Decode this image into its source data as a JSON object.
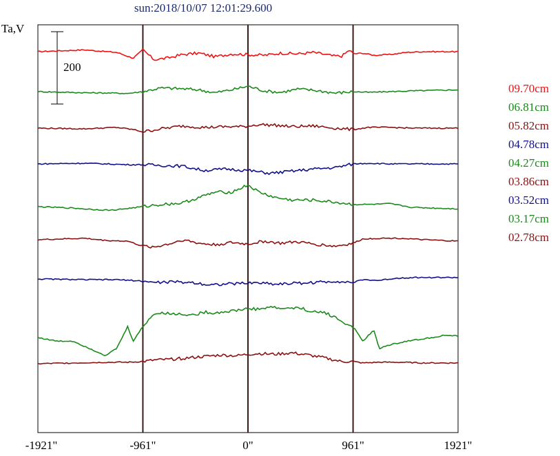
{
  "title": "sun:2018/10/07 12:01:29.600",
  "ylabel": "Ta,V",
  "scale_bar_label": "200",
  "chart_data": {
    "type": "line",
    "title": "sun:2018/10/07 12:01:29.600",
    "ylabel": "Ta,V",
    "xlim": [
      -1921,
      1921
    ],
    "x_ticks": [
      "-1921\"",
      "-961\"",
      "0\"",
      "961\"",
      "1921\""
    ],
    "x_tick_values": [
      -1921,
      -961,
      0,
      961,
      1921
    ],
    "vertical_lines": [
      -961,
      0,
      961
    ],
    "scale_bar": 200,
    "grid": false,
    "legend_placement": "right",
    "series": [
      {
        "name": "09.70cm",
        "color": "#ee1111",
        "points": [
          [
            -1921,
            0
          ],
          [
            -1500,
            5
          ],
          [
            -1200,
            -2
          ],
          [
            -1050,
            -18
          ],
          [
            -961,
            5
          ],
          [
            -860,
            -22
          ],
          [
            -740,
            -18
          ],
          [
            -600,
            -8
          ],
          [
            -450,
            -4
          ],
          [
            -300,
            -14
          ],
          [
            -150,
            -6
          ],
          [
            0,
            -8
          ],
          [
            150,
            -10
          ],
          [
            300,
            -4
          ],
          [
            450,
            -6
          ],
          [
            600,
            -2
          ],
          [
            780,
            -12
          ],
          [
            861,
            -12
          ],
          [
            930,
            5
          ],
          [
            961,
            -6
          ],
          [
            1050,
            -4
          ],
          [
            1150,
            -10
          ],
          [
            1300,
            -8
          ],
          [
            1450,
            -2
          ],
          [
            1600,
            0
          ],
          [
            1921,
            0
          ]
        ]
      },
      {
        "name": "06.81cm",
        "color": "#1a8a1a",
        "points": [
          [
            -1921,
            0
          ],
          [
            -1500,
            -3
          ],
          [
            -1250,
            -4
          ],
          [
            -1100,
            -5
          ],
          [
            -961,
            0
          ],
          [
            -800,
            10
          ],
          [
            -600,
            8
          ],
          [
            -450,
            5
          ],
          [
            -300,
            -3
          ],
          [
            -150,
            5
          ],
          [
            0,
            15
          ],
          [
            150,
            2
          ],
          [
            300,
            -2
          ],
          [
            450,
            7
          ],
          [
            600,
            4
          ],
          [
            800,
            -4
          ],
          [
            961,
            0
          ],
          [
            1100,
            -2
          ],
          [
            1300,
            0
          ],
          [
            1500,
            2
          ],
          [
            1921,
            5
          ]
        ]
      },
      {
        "name": "05.82cm",
        "color": "#8b1010",
        "points": [
          [
            -1921,
            0
          ],
          [
            -1500,
            -2
          ],
          [
            -1200,
            2
          ],
          [
            -1050,
            -4
          ],
          [
            -961,
            -10
          ],
          [
            -800,
            -2
          ],
          [
            -600,
            6
          ],
          [
            -400,
            2
          ],
          [
            -200,
            4
          ],
          [
            -50,
            4
          ],
          [
            100,
            10
          ],
          [
            250,
            8
          ],
          [
            400,
            4
          ],
          [
            600,
            6
          ],
          [
            800,
            0
          ],
          [
            961,
            -4
          ],
          [
            1100,
            2
          ],
          [
            1300,
            2
          ],
          [
            1500,
            0
          ],
          [
            1921,
            0
          ]
        ]
      },
      {
        "name": "04.78cm",
        "color": "#10108a",
        "points": [
          [
            -1921,
            0
          ],
          [
            -1500,
            2
          ],
          [
            -1300,
            0
          ],
          [
            -1100,
            -2
          ],
          [
            -961,
            -2
          ],
          [
            -800,
            -4
          ],
          [
            -600,
            -6
          ],
          [
            -400,
            -18
          ],
          [
            -200,
            -14
          ],
          [
            0,
            -18
          ],
          [
            200,
            -26
          ],
          [
            400,
            -20
          ],
          [
            600,
            -14
          ],
          [
            800,
            -10
          ],
          [
            961,
            0
          ],
          [
            1100,
            2
          ],
          [
            1300,
            0
          ],
          [
            1500,
            0
          ],
          [
            1921,
            0
          ]
        ]
      },
      {
        "name": "04.27cm",
        "color": "#1a8a1a",
        "points": [
          [
            -1921,
            0
          ],
          [
            -1600,
            -4
          ],
          [
            -1400,
            -8
          ],
          [
            -1250,
            -10
          ],
          [
            -1100,
            -5
          ],
          [
            -961,
            0
          ],
          [
            -800,
            6
          ],
          [
            -600,
            10
          ],
          [
            -450,
            25
          ],
          [
            -300,
            40
          ],
          [
            -150,
            40
          ],
          [
            0,
            60
          ],
          [
            100,
            40
          ],
          [
            250,
            25
          ],
          [
            400,
            18
          ],
          [
            600,
            18
          ],
          [
            800,
            12
          ],
          [
            961,
            6
          ],
          [
            1100,
            6
          ],
          [
            1300,
            8
          ],
          [
            1500,
            -2
          ],
          [
            1700,
            -4
          ],
          [
            1921,
            -6
          ]
        ]
      },
      {
        "name": "03.86cm",
        "color": "#8b1010",
        "points": [
          [
            -1921,
            0
          ],
          [
            -1500,
            4
          ],
          [
            -1300,
            -2
          ],
          [
            -1100,
            -4
          ],
          [
            -961,
            -18
          ],
          [
            -850,
            -20
          ],
          [
            -700,
            -10
          ],
          [
            -600,
            0
          ],
          [
            -450,
            -10
          ],
          [
            -300,
            -14
          ],
          [
            -150,
            -8
          ],
          [
            0,
            -12
          ],
          [
            150,
            -4
          ],
          [
            300,
            -10
          ],
          [
            450,
            -6
          ],
          [
            600,
            -12
          ],
          [
            800,
            -18
          ],
          [
            961,
            -10
          ],
          [
            1050,
            2
          ],
          [
            1200,
            4
          ],
          [
            1400,
            4
          ],
          [
            1600,
            0
          ],
          [
            1921,
            -4
          ]
        ]
      },
      {
        "name": "03.52cm",
        "color": "#10108a",
        "points": [
          [
            -1921,
            0
          ],
          [
            -1500,
            -2
          ],
          [
            -1200,
            -2
          ],
          [
            -1050,
            -4
          ],
          [
            -961,
            -6
          ],
          [
            -850,
            -10
          ],
          [
            -700,
            -8
          ],
          [
            -500,
            -10
          ],
          [
            -350,
            -16
          ],
          [
            -200,
            -14
          ],
          [
            -50,
            -12
          ],
          [
            100,
            -10
          ],
          [
            250,
            -14
          ],
          [
            400,
            -12
          ],
          [
            600,
            -10
          ],
          [
            800,
            -6
          ],
          [
            961,
            -10
          ],
          [
            1050,
            -2
          ],
          [
            1200,
            -4
          ],
          [
            1350,
            2
          ],
          [
            1500,
            4
          ],
          [
            1921,
            4
          ]
        ]
      },
      {
        "name": "03.17cm",
        "color": "#1a8a1a",
        "points": [
          [
            -1921,
            0
          ],
          [
            -1750,
            -10
          ],
          [
            -1600,
            -10
          ],
          [
            -1450,
            -30
          ],
          [
            -1300,
            -50
          ],
          [
            -1200,
            -30
          ],
          [
            -1100,
            30
          ],
          [
            -1050,
            -10
          ],
          [
            -961,
            30
          ],
          [
            -880,
            60
          ],
          [
            -800,
            70
          ],
          [
            -700,
            65
          ],
          [
            -600,
            65
          ],
          [
            -500,
            62
          ],
          [
            -400,
            70
          ],
          [
            -300,
            68
          ],
          [
            -200,
            72
          ],
          [
            -100,
            75
          ],
          [
            0,
            80
          ],
          [
            100,
            78
          ],
          [
            200,
            85
          ],
          [
            300,
            80
          ],
          [
            400,
            82
          ],
          [
            500,
            80
          ],
          [
            600,
            70
          ],
          [
            700,
            70
          ],
          [
            800,
            55
          ],
          [
            880,
            40
          ],
          [
            961,
            30
          ],
          [
            1050,
            -10
          ],
          [
            1150,
            20
          ],
          [
            1200,
            -30
          ],
          [
            1300,
            -20
          ],
          [
            1450,
            -10
          ],
          [
            1600,
            -4
          ],
          [
            1800,
            6
          ],
          [
            1921,
            4
          ]
        ]
      },
      {
        "name": "02.78cm",
        "color": "#8b1010",
        "points": [
          [
            -1921,
            0
          ],
          [
            -1600,
            2
          ],
          [
            -1300,
            4
          ],
          [
            -1100,
            4
          ],
          [
            -961,
            6
          ],
          [
            -850,
            10
          ],
          [
            -700,
            12
          ],
          [
            -550,
            16
          ],
          [
            -400,
            20
          ],
          [
            -250,
            24
          ],
          [
            -100,
            22
          ],
          [
            0,
            26
          ],
          [
            100,
            28
          ],
          [
            250,
            26
          ],
          [
            400,
            30
          ],
          [
            550,
            24
          ],
          [
            700,
            16
          ],
          [
            850,
            6
          ],
          [
            961,
            6
          ],
          [
            1050,
            2
          ],
          [
            1200,
            4
          ],
          [
            1400,
            4
          ],
          [
            1600,
            2
          ],
          [
            1921,
            2
          ]
        ]
      }
    ]
  }
}
